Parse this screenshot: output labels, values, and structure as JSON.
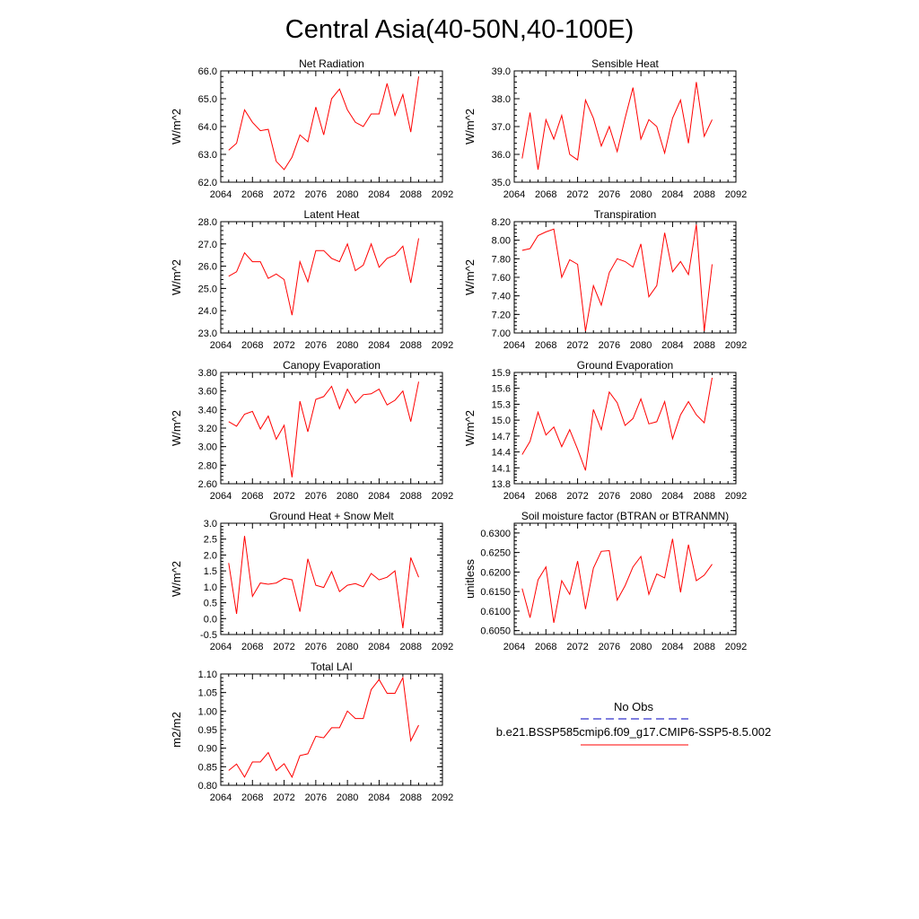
{
  "figure": {
    "title": "Central Asia(40-50N,40-100E)"
  },
  "legend": {
    "obs_label": "No Obs",
    "obs_color": "#3333cc",
    "model_label": "b.e21.BSSP585cmip6.f09_g17.CMIP6-SSP5-8.5.002",
    "model_color": "#ff0000"
  },
  "chart_data": [
    {
      "type": "line",
      "title": "Net Radiation",
      "ylabel": "W/m^2",
      "xlim": [
        2064,
        2092
      ],
      "ylim": [
        62.0,
        66.0
      ],
      "x_ticks": [
        "2064",
        "2068",
        "2072",
        "2076",
        "2080",
        "2084",
        "2088",
        "2092"
      ],
      "y_ticks": [
        "62.0",
        "63.0",
        "64.0",
        "65.0",
        "66.0"
      ],
      "series": [
        {
          "color": "#ff0000",
          "x": [
            2065,
            2066,
            2067,
            2068,
            2069,
            2070,
            2071,
            2072,
            2073,
            2074,
            2075,
            2076,
            2077,
            2078,
            2079,
            2080,
            2081,
            2082,
            2083,
            2084,
            2085,
            2086,
            2087,
            2088,
            2089
          ],
          "values": [
            63.15,
            63.4,
            64.6,
            64.15,
            63.85,
            63.9,
            62.75,
            62.45,
            62.9,
            63.7,
            63.45,
            64.7,
            63.7,
            65.0,
            65.35,
            64.6,
            64.15,
            64.0,
            64.45,
            64.45,
            65.55,
            64.4,
            65.15,
            63.8,
            65.8
          ]
        }
      ]
    },
    {
      "type": "line",
      "title": "Sensible Heat",
      "ylabel": "W/m^2",
      "xlim": [
        2064,
        2092
      ],
      "ylim": [
        35.0,
        39.0
      ],
      "x_ticks": [
        "2064",
        "2068",
        "2072",
        "2076",
        "2080",
        "2084",
        "2088",
        "2092"
      ],
      "y_ticks": [
        "35.0",
        "36.0",
        "37.0",
        "38.0",
        "39.0"
      ],
      "series": [
        {
          "color": "#ff0000",
          "x": [
            2065,
            2066,
            2067,
            2068,
            2069,
            2070,
            2071,
            2072,
            2073,
            2074,
            2075,
            2076,
            2077,
            2078,
            2079,
            2080,
            2081,
            2082,
            2083,
            2084,
            2085,
            2086,
            2087,
            2088,
            2089
          ],
          "values": [
            35.85,
            37.5,
            35.45,
            37.25,
            36.55,
            37.4,
            36.0,
            35.8,
            37.95,
            37.3,
            36.3,
            37.0,
            36.1,
            37.3,
            38.4,
            36.55,
            37.25,
            37.0,
            36.05,
            37.3,
            37.95,
            36.4,
            38.6,
            36.65,
            37.25
          ]
        }
      ]
    },
    {
      "type": "line",
      "title": "Latent Heat",
      "ylabel": "W/m^2",
      "xlim": [
        2064,
        2092
      ],
      "ylim": [
        23.0,
        28.0
      ],
      "x_ticks": [
        "2064",
        "2068",
        "2072",
        "2076",
        "2080",
        "2084",
        "2088",
        "2092"
      ],
      "y_ticks": [
        "23.0",
        "24.0",
        "25.0",
        "26.0",
        "27.0",
        "28.0"
      ],
      "series": [
        {
          "color": "#ff0000",
          "x": [
            2065,
            2066,
            2067,
            2068,
            2069,
            2070,
            2071,
            2072,
            2073,
            2074,
            2075,
            2076,
            2077,
            2078,
            2079,
            2080,
            2081,
            2082,
            2083,
            2084,
            2085,
            2086,
            2087,
            2088,
            2089
          ],
          "values": [
            25.55,
            25.75,
            26.6,
            26.2,
            26.2,
            25.45,
            25.65,
            25.4,
            23.8,
            26.2,
            25.3,
            26.7,
            26.7,
            26.35,
            26.2,
            27.0,
            25.8,
            26.05,
            27.0,
            25.95,
            26.35,
            26.5,
            26.9,
            25.25,
            27.25
          ]
        }
      ]
    },
    {
      "type": "line",
      "title": "Transpiration",
      "ylabel": "W/m^2",
      "xlim": [
        2064,
        2092
      ],
      "ylim": [
        7.0,
        8.2
      ],
      "x_ticks": [
        "2064",
        "2068",
        "2072",
        "2076",
        "2080",
        "2084",
        "2088",
        "2092"
      ],
      "y_ticks": [
        "7.00",
        "7.20",
        "7.40",
        "7.60",
        "7.80",
        "8.00",
        "8.20"
      ],
      "series": [
        {
          "color": "#ff0000",
          "x": [
            2065,
            2066,
            2067,
            2068,
            2069,
            2070,
            2071,
            2072,
            2073,
            2074,
            2075,
            2076,
            2077,
            2078,
            2079,
            2080,
            2081,
            2082,
            2083,
            2084,
            2085,
            2086,
            2087,
            2088,
            2089
          ],
          "values": [
            7.89,
            7.91,
            8.05,
            8.09,
            8.12,
            7.6,
            7.79,
            7.74,
            7.02,
            7.51,
            7.3,
            7.65,
            7.8,
            7.77,
            7.71,
            7.96,
            7.39,
            7.51,
            8.08,
            7.66,
            7.77,
            7.63,
            8.17,
            7.02,
            7.74
          ]
        }
      ]
    },
    {
      "type": "line",
      "title": "Canopy Evaporation",
      "ylabel": "W/m^2",
      "xlim": [
        2064,
        2092
      ],
      "ylim": [
        2.6,
        3.8
      ],
      "x_ticks": [
        "2064",
        "2068",
        "2072",
        "2076",
        "2080",
        "2084",
        "2088",
        "2092"
      ],
      "y_ticks": [
        "2.60",
        "2.80",
        "3.00",
        "3.20",
        "3.40",
        "3.60",
        "3.80"
      ],
      "series": [
        {
          "color": "#ff0000",
          "x": [
            2065,
            2066,
            2067,
            2068,
            2069,
            2070,
            2071,
            2072,
            2073,
            2074,
            2075,
            2076,
            2077,
            2078,
            2079,
            2080,
            2081,
            2082,
            2083,
            2084,
            2085,
            2086,
            2087,
            2088,
            2089
          ],
          "values": [
            3.27,
            3.22,
            3.35,
            3.38,
            3.19,
            3.33,
            3.08,
            3.23,
            2.67,
            3.49,
            3.16,
            3.51,
            3.54,
            3.65,
            3.41,
            3.62,
            3.47,
            3.56,
            3.57,
            3.62,
            3.45,
            3.5,
            3.6,
            3.27,
            3.7
          ]
        }
      ]
    },
    {
      "type": "line",
      "title": "Ground Evaporation",
      "ylabel": "W/m^2",
      "xlim": [
        2064,
        2092
      ],
      "ylim": [
        13.8,
        15.9
      ],
      "x_ticks": [
        "2064",
        "2068",
        "2072",
        "2076",
        "2080",
        "2084",
        "2088",
        "2092"
      ],
      "y_ticks": [
        "13.8",
        "14.1",
        "14.4",
        "14.7",
        "15.0",
        "15.3",
        "15.6",
        "15.9"
      ],
      "series": [
        {
          "color": "#ff0000",
          "x": [
            2065,
            2066,
            2067,
            2068,
            2069,
            2070,
            2071,
            2072,
            2073,
            2074,
            2075,
            2076,
            2077,
            2078,
            2079,
            2080,
            2081,
            2082,
            2083,
            2084,
            2085,
            2086,
            2087,
            2088,
            2089
          ],
          "values": [
            14.35,
            14.6,
            15.15,
            14.72,
            14.87,
            14.5,
            14.82,
            14.45,
            14.05,
            15.2,
            14.82,
            15.53,
            15.33,
            14.9,
            15.03,
            15.4,
            14.93,
            14.97,
            15.35,
            14.65,
            15.1,
            15.35,
            15.1,
            14.95,
            15.8
          ]
        }
      ]
    },
    {
      "type": "line",
      "title": "Ground Heat + Snow Melt",
      "ylabel": "W/m^2",
      "xlim": [
        2064,
        2092
      ],
      "ylim": [
        -0.5,
        3.0
      ],
      "x_ticks": [
        "2064",
        "2068",
        "2072",
        "2076",
        "2080",
        "2084",
        "2088",
        "2092"
      ],
      "y_ticks": [
        "-0.5",
        "0.0",
        "0.5",
        "1.0",
        "1.5",
        "2.0",
        "2.5",
        "3.0"
      ],
      "series": [
        {
          "color": "#ff0000",
          "x": [
            2065,
            2066,
            2067,
            2068,
            2069,
            2070,
            2071,
            2072,
            2073,
            2074,
            2075,
            2076,
            2077,
            2078,
            2079,
            2080,
            2081,
            2082,
            2083,
            2084,
            2085,
            2086,
            2087,
            2088,
            2089
          ],
          "values": [
            1.75,
            0.15,
            2.6,
            0.7,
            1.12,
            1.08,
            1.12,
            1.27,
            1.22,
            0.22,
            1.88,
            1.05,
            0.98,
            1.48,
            0.85,
            1.05,
            1.1,
            1.0,
            1.42,
            1.22,
            1.3,
            1.5,
            -0.3,
            1.92,
            1.3
          ]
        }
      ]
    },
    {
      "type": "line",
      "title": "Soil moisture factor (BTRAN or BTRANMN)",
      "ylabel": "unitless",
      "xlim": [
        2064,
        2092
      ],
      "ylim": [
        0.604,
        0.6325
      ],
      "x_ticks": [
        "2064",
        "2068",
        "2072",
        "2076",
        "2080",
        "2084",
        "2088",
        "2092"
      ],
      "y_ticks": [
        "0.6050",
        "0.6100",
        "0.6150",
        "0.6200",
        "0.6250",
        "0.6300"
      ],
      "series": [
        {
          "color": "#ff0000",
          "x": [
            2065,
            2066,
            2067,
            2068,
            2069,
            2070,
            2071,
            2072,
            2073,
            2074,
            2075,
            2076,
            2077,
            2078,
            2079,
            2080,
            2081,
            2082,
            2083,
            2084,
            2085,
            2086,
            2087,
            2088,
            2089
          ],
          "values": [
            0.6158,
            0.6083,
            0.618,
            0.6213,
            0.607,
            0.6178,
            0.6143,
            0.6228,
            0.6105,
            0.621,
            0.6253,
            0.6255,
            0.6128,
            0.6165,
            0.6213,
            0.624,
            0.6143,
            0.6195,
            0.6185,
            0.6285,
            0.6148,
            0.627,
            0.6178,
            0.6192,
            0.622
          ]
        }
      ]
    },
    {
      "type": "line",
      "title": "Total LAI",
      "ylabel": "m2/m2",
      "xlim": [
        2064,
        2092
      ],
      "ylim": [
        0.8,
        1.1
      ],
      "x_ticks": [
        "2064",
        "2068",
        "2072",
        "2076",
        "2080",
        "2084",
        "2088",
        "2092"
      ],
      "y_ticks": [
        "0.80",
        "0.85",
        "0.90",
        "0.95",
        "1.00",
        "1.05",
        "1.10"
      ],
      "series": [
        {
          "color": "#ff0000",
          "x": [
            2065,
            2066,
            2067,
            2068,
            2069,
            2070,
            2071,
            2072,
            2073,
            2074,
            2075,
            2076,
            2077,
            2078,
            2079,
            2080,
            2081,
            2082,
            2083,
            2084,
            2085,
            2086,
            2087,
            2088,
            2089
          ],
          "values": [
            0.84,
            0.857,
            0.822,
            0.863,
            0.863,
            0.888,
            0.84,
            0.858,
            0.822,
            0.88,
            0.885,
            0.932,
            0.928,
            0.955,
            0.955,
            1.0,
            0.98,
            0.98,
            1.058,
            1.085,
            1.048,
            1.048,
            1.09,
            0.92,
            0.962
          ]
        }
      ]
    }
  ]
}
